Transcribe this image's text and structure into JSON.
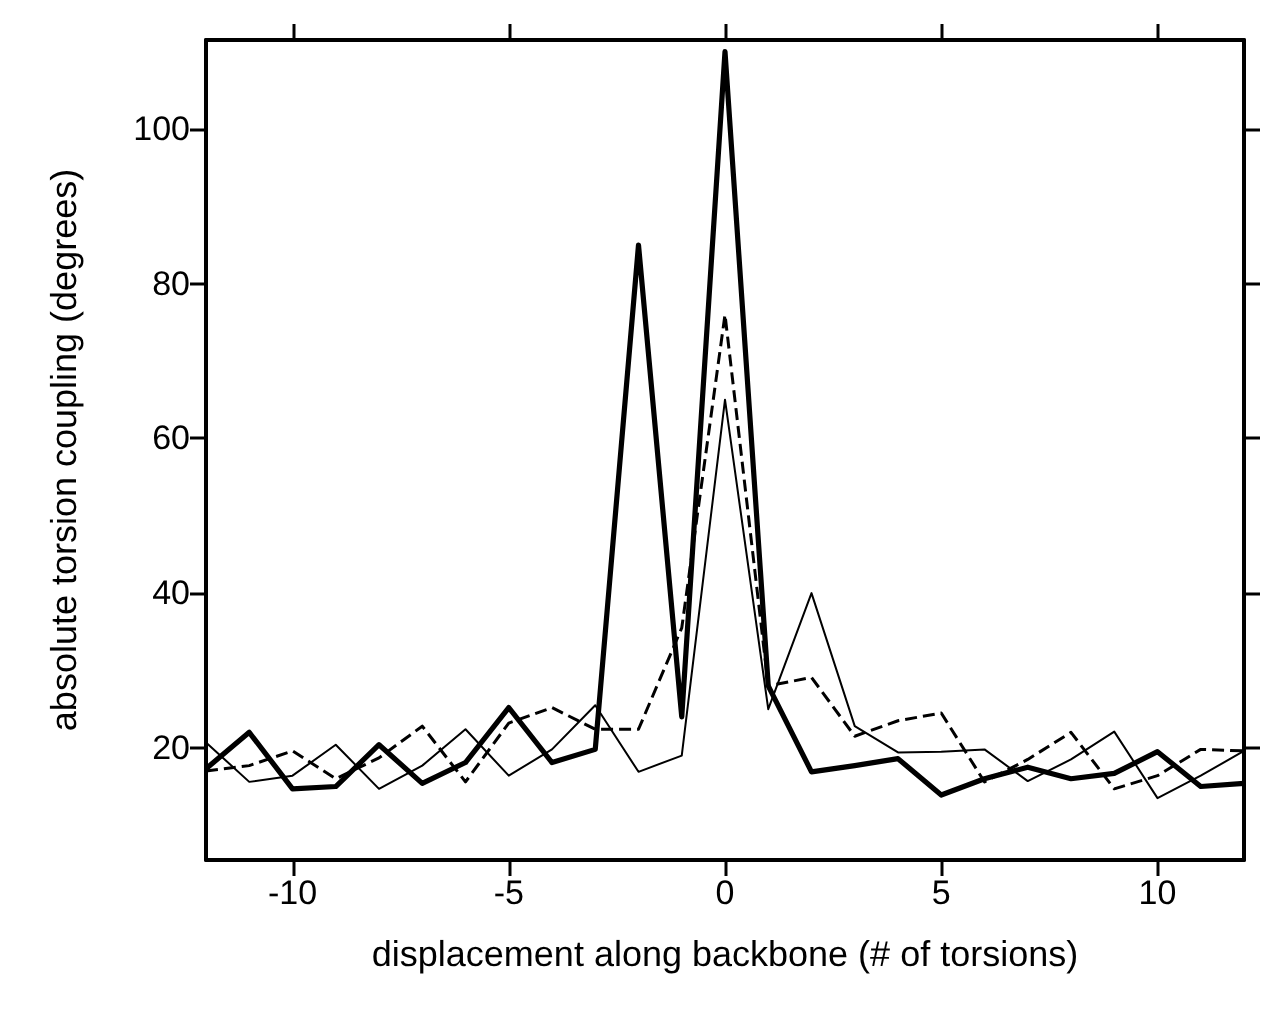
{
  "chart_data": {
    "type": "line",
    "xlabel": "displacement along backbone (# of torsions)",
    "ylabel": "absolute torsion coupling (degrees)",
    "x": [
      -12,
      -11,
      -10,
      -9,
      -8,
      -7,
      -6,
      -5,
      -4,
      -3,
      -2,
      -1,
      0,
      1,
      2,
      3,
      4,
      5,
      6,
      7,
      8,
      9,
      10,
      11,
      12
    ],
    "series": [
      {
        "color": "#000000",
        "line_style": "solid",
        "values": [
          17.3,
          22.0,
          14.7,
          15.0,
          20.4,
          15.4,
          18.1,
          25.2,
          18.1,
          19.8,
          85,
          24,
          110,
          28,
          16.9,
          17.7,
          18.6,
          13.9,
          16.0,
          17.5,
          16.0,
          16.7,
          19.5,
          15.0,
          15.4
        ]
      },
      {
        "color": "#000000",
        "line_style": "solid",
        "values": [
          20.7,
          15.6,
          16.4,
          20.4,
          14.7,
          17.7,
          22.4,
          16.4,
          19.8,
          25.5,
          16.9,
          19,
          65,
          25,
          40,
          22.8,
          19.4,
          19.5,
          19.8,
          15.7,
          18.5,
          22.1,
          13.5,
          16.4,
          19.6
        ]
      },
      {
        "color": "#000000",
        "line_style": "dashed",
        "values": [
          17.0,
          17.7,
          19.6,
          16.0,
          18.7,
          22.8,
          15.6,
          23.2,
          25.2,
          22.4,
          22.4,
          35.5,
          76,
          28,
          29.1,
          21.5,
          23.5,
          24.5,
          15.6,
          18.5,
          22.0,
          14.7,
          16.4,
          19.8,
          19.6
        ]
      }
    ],
    "xlim": [
      -12,
      12
    ],
    "xticks": [
      -10,
      -5,
      0,
      5,
      10
    ],
    "ylim": [
      5.5,
      111.5
    ],
    "yticks": [
      20,
      40,
      60,
      80,
      100
    ],
    "grid": false,
    "marker": "none"
  }
}
